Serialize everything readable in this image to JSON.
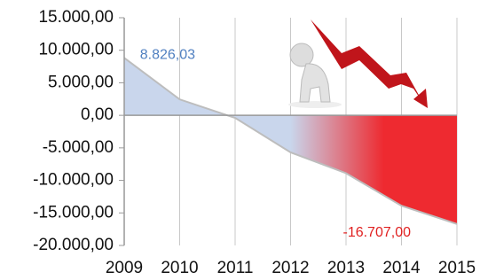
{
  "chart_data": {
    "type": "area",
    "x": [
      2009,
      2010,
      2011,
      2012,
      2013,
      2014,
      2015
    ],
    "values": [
      8826.03,
      2450,
      -400,
      -5700,
      -8900,
      -13900,
      -16707
    ],
    "value_labels": [
      "8.826,03",
      null,
      null,
      null,
      null,
      null,
      "-16.707,00"
    ],
    "label_colors": [
      "#4f7fc0",
      null,
      null,
      null,
      null,
      null,
      "#e02020"
    ],
    "gradient": [
      "#c9d6ec",
      "#ee2a30"
    ],
    "line_color": "#bdbdbd",
    "xlim": [
      2009,
      2015
    ],
    "xticks": [
      2009,
      2010,
      2011,
      2012,
      2013,
      2014,
      2015
    ],
    "ylim": [
      -20000,
      15000
    ],
    "yticks": [
      {
        "value": -20000,
        "label": "-20.000,00"
      },
      {
        "value": -15000,
        "label": "-15.000,00"
      },
      {
        "value": -10000,
        "label": "-10.000,00"
      },
      {
        "value": -5000,
        "label": "-5.000,00"
      },
      {
        "value": 0,
        "label": "0,00"
      },
      {
        "value": 5000,
        "label": "5.000,00"
      },
      {
        "value": 10000,
        "label": "10.000,00"
      },
      {
        "value": 15000,
        "label": "15.000,00"
      }
    ],
    "grid": true
  }
}
